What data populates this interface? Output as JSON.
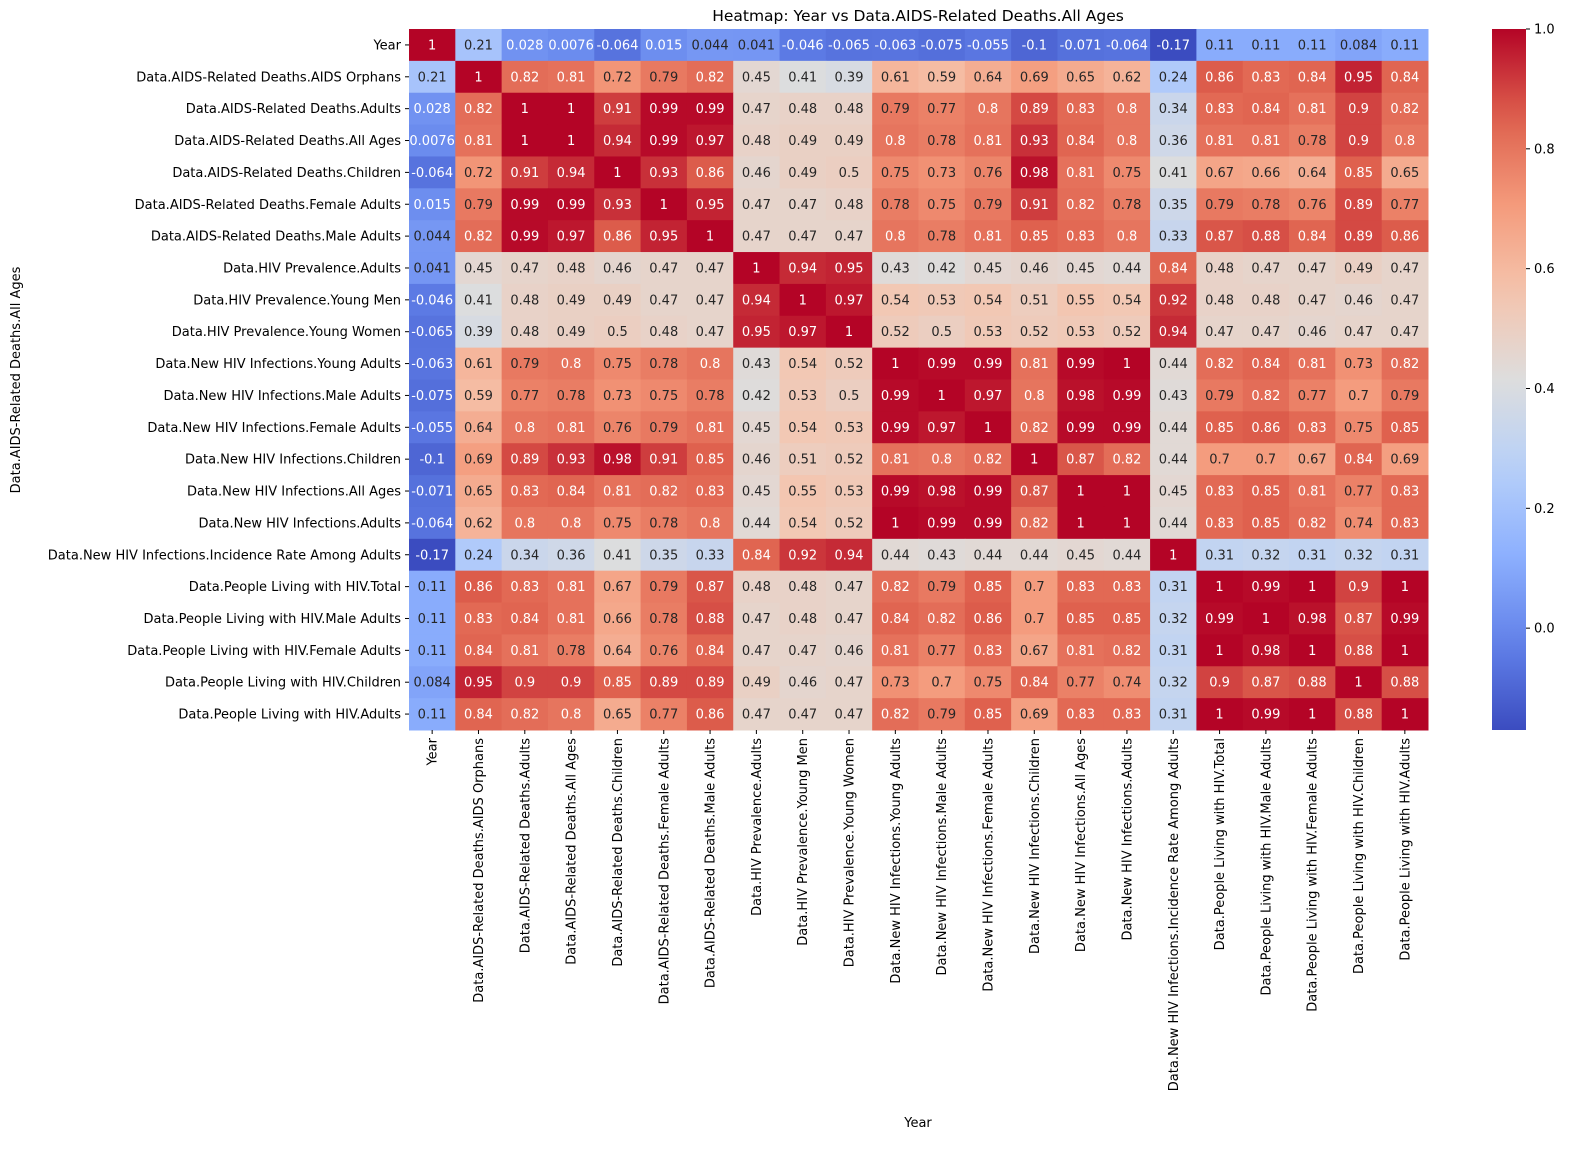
{
  "chart_data": {
    "type": "heatmap",
    "title": "Heatmap: Year vs Data.AIDS-Related Deaths.All Ages",
    "xlabel": "Year",
    "ylabel": "Data.AIDS-Related Deaths.All Ages",
    "colormap": "coolwarm",
    "vmin": -0.17,
    "vmax": 1.0,
    "colorbar": {
      "ticks": [
        0.0,
        0.2,
        0.4,
        0.6,
        0.8,
        1.0
      ],
      "tick_labels": [
        "0.0",
        "0.2",
        "0.4",
        "0.6",
        "0.8",
        "1.0"
      ],
      "placement": "right"
    },
    "labels": [
      "Year",
      "Data.AIDS-Related Deaths.AIDS Orphans",
      "Data.AIDS-Related Deaths.Adults",
      "Data.AIDS-Related Deaths.All Ages",
      "Data.AIDS-Related Deaths.Children",
      "Data.AIDS-Related Deaths.Female Adults",
      "Data.AIDS-Related Deaths.Male Adults",
      "Data.HIV Prevalence.Adults",
      "Data.HIV Prevalence.Young Men",
      "Data.HIV Prevalence.Young Women",
      "Data.New HIV Infections.Young Adults",
      "Data.New HIV Infections.Male Adults",
      "Data.New HIV Infections.Female Adults",
      "Data.New HIV Infections.Children",
      "Data.New HIV Infections.All Ages",
      "Data.New HIV Infections.Adults",
      "Data.New HIV Infections.Incidence Rate Among Adults",
      "Data.People Living with HIV.Total",
      "Data.People Living with HIV.Male Adults",
      "Data.People Living with HIV.Female Adults",
      "Data.People Living with HIV.Children",
      "Data.People Living with HIV.Adults"
    ],
    "cell_text": [
      [
        "1",
        "0.21",
        "0.028",
        "0.0076",
        "-0.064",
        "0.015",
        "0.044",
        "0.041",
        "-0.046",
        "-0.065",
        "-0.063",
        "-0.075",
        "-0.055",
        "-0.1",
        "-0.071",
        "-0.064",
        "-0.17",
        "0.11",
        "0.11",
        "0.11",
        "0.084",
        "0.11"
      ],
      [
        "0.21",
        "1",
        "0.82",
        "0.81",
        "0.72",
        "0.79",
        "0.82",
        "0.45",
        "0.41",
        "0.39",
        "0.61",
        "0.59",
        "0.64",
        "0.69",
        "0.65",
        "0.62",
        "0.24",
        "0.86",
        "0.83",
        "0.84",
        "0.95",
        "0.84"
      ],
      [
        "0.028",
        "0.82",
        "1",
        "1",
        "0.91",
        "0.99",
        "0.99",
        "0.47",
        "0.48",
        "0.48",
        "0.79",
        "0.77",
        "0.8",
        "0.89",
        "0.83",
        "0.8",
        "0.34",
        "0.83",
        "0.84",
        "0.81",
        "0.9",
        "0.82"
      ],
      [
        "0.0076",
        "0.81",
        "1",
        "1",
        "0.94",
        "0.99",
        "0.97",
        "0.48",
        "0.49",
        "0.49",
        "0.8",
        "0.78",
        "0.81",
        "0.93",
        "0.84",
        "0.8",
        "0.36",
        "0.81",
        "0.81",
        "0.78",
        "0.9",
        "0.8"
      ],
      [
        "-0.064",
        "0.72",
        "0.91",
        "0.94",
        "1",
        "0.93",
        "0.86",
        "0.46",
        "0.49",
        "0.5",
        "0.75",
        "0.73",
        "0.76",
        "0.98",
        "0.81",
        "0.75",
        "0.41",
        "0.67",
        "0.66",
        "0.64",
        "0.85",
        "0.65"
      ],
      [
        "0.015",
        "0.79",
        "0.99",
        "0.99",
        "0.93",
        "1",
        "0.95",
        "0.47",
        "0.47",
        "0.48",
        "0.78",
        "0.75",
        "0.79",
        "0.91",
        "0.82",
        "0.78",
        "0.35",
        "0.79",
        "0.78",
        "0.76",
        "0.89",
        "0.77"
      ],
      [
        "0.044",
        "0.82",
        "0.99",
        "0.97",
        "0.86",
        "0.95",
        "1",
        "0.47",
        "0.47",
        "0.47",
        "0.8",
        "0.78",
        "0.81",
        "0.85",
        "0.83",
        "0.8",
        "0.33",
        "0.87",
        "0.88",
        "0.84",
        "0.89",
        "0.86"
      ],
      [
        "0.041",
        "0.45",
        "0.47",
        "0.48",
        "0.46",
        "0.47",
        "0.47",
        "1",
        "0.94",
        "0.95",
        "0.43",
        "0.42",
        "0.45",
        "0.46",
        "0.45",
        "0.44",
        "0.84",
        "0.48",
        "0.47",
        "0.47",
        "0.49",
        "0.47"
      ],
      [
        "-0.046",
        "0.41",
        "0.48",
        "0.49",
        "0.49",
        "0.47",
        "0.47",
        "0.94",
        "1",
        "0.97",
        "0.54",
        "0.53",
        "0.54",
        "0.51",
        "0.55",
        "0.54",
        "0.92",
        "0.48",
        "0.48",
        "0.47",
        "0.46",
        "0.47"
      ],
      [
        "-0.065",
        "0.39",
        "0.48",
        "0.49",
        "0.5",
        "0.48",
        "0.47",
        "0.95",
        "0.97",
        "1",
        "0.52",
        "0.5",
        "0.53",
        "0.52",
        "0.53",
        "0.52",
        "0.94",
        "0.47",
        "0.47",
        "0.46",
        "0.47",
        "0.47"
      ],
      [
        "-0.063",
        "0.61",
        "0.79",
        "0.8",
        "0.75",
        "0.78",
        "0.8",
        "0.43",
        "0.54",
        "0.52",
        "1",
        "0.99",
        "0.99",
        "0.81",
        "0.99",
        "1",
        "0.44",
        "0.82",
        "0.84",
        "0.81",
        "0.73",
        "0.82"
      ],
      [
        "-0.075",
        "0.59",
        "0.77",
        "0.78",
        "0.73",
        "0.75",
        "0.78",
        "0.42",
        "0.53",
        "0.5",
        "0.99",
        "1",
        "0.97",
        "0.8",
        "0.98",
        "0.99",
        "0.43",
        "0.79",
        "0.82",
        "0.77",
        "0.7",
        "0.79"
      ],
      [
        "-0.055",
        "0.64",
        "0.8",
        "0.81",
        "0.76",
        "0.79",
        "0.81",
        "0.45",
        "0.54",
        "0.53",
        "0.99",
        "0.97",
        "1",
        "0.82",
        "0.99",
        "0.99",
        "0.44",
        "0.85",
        "0.86",
        "0.83",
        "0.75",
        "0.85"
      ],
      [
        "-0.1",
        "0.69",
        "0.89",
        "0.93",
        "0.98",
        "0.91",
        "0.85",
        "0.46",
        "0.51",
        "0.52",
        "0.81",
        "0.8",
        "0.82",
        "1",
        "0.87",
        "0.82",
        "0.44",
        "0.7",
        "0.7",
        "0.67",
        "0.84",
        "0.69"
      ],
      [
        "-0.071",
        "0.65",
        "0.83",
        "0.84",
        "0.81",
        "0.82",
        "0.83",
        "0.45",
        "0.55",
        "0.53",
        "0.99",
        "0.98",
        "0.99",
        "0.87",
        "1",
        "1",
        "0.45",
        "0.83",
        "0.85",
        "0.81",
        "0.77",
        "0.83"
      ],
      [
        "-0.064",
        "0.62",
        "0.8",
        "0.8",
        "0.75",
        "0.78",
        "0.8",
        "0.44",
        "0.54",
        "0.52",
        "1",
        "0.99",
        "0.99",
        "0.82",
        "1",
        "1",
        "0.44",
        "0.83",
        "0.85",
        "0.82",
        "0.74",
        "0.83"
      ],
      [
        "-0.17",
        "0.24",
        "0.34",
        "0.36",
        "0.41",
        "0.35",
        "0.33",
        "0.84",
        "0.92",
        "0.94",
        "0.44",
        "0.43",
        "0.44",
        "0.44",
        "0.45",
        "0.44",
        "1",
        "0.31",
        "0.32",
        "0.31",
        "0.32",
        "0.31"
      ],
      [
        "0.11",
        "0.86",
        "0.83",
        "0.81",
        "0.67",
        "0.79",
        "0.87",
        "0.48",
        "0.48",
        "0.47",
        "0.82",
        "0.79",
        "0.85",
        "0.7",
        "0.83",
        "0.83",
        "0.31",
        "1",
        "0.99",
        "1",
        "0.9",
        "1"
      ],
      [
        "0.11",
        "0.83",
        "0.84",
        "0.81",
        "0.66",
        "0.78",
        "0.88",
        "0.47",
        "0.48",
        "0.47",
        "0.84",
        "0.82",
        "0.86",
        "0.7",
        "0.85",
        "0.85",
        "0.32",
        "0.99",
        "1",
        "0.98",
        "0.87",
        "0.99"
      ],
      [
        "0.11",
        "0.84",
        "0.81",
        "0.78",
        "0.64",
        "0.76",
        "0.84",
        "0.47",
        "0.47",
        "0.46",
        "0.81",
        "0.77",
        "0.83",
        "0.67",
        "0.81",
        "0.82",
        "0.31",
        "1",
        "0.98",
        "1",
        "0.88",
        "1"
      ],
      [
        "0.084",
        "0.95",
        "0.9",
        "0.9",
        "0.85",
        "0.89",
        "0.89",
        "0.49",
        "0.46",
        "0.47",
        "0.73",
        "0.7",
        "0.75",
        "0.84",
        "0.77",
        "0.74",
        "0.32",
        "0.9",
        "0.87",
        "0.88",
        "1",
        "0.88"
      ],
      [
        "0.11",
        "0.84",
        "0.82",
        "0.8",
        "0.65",
        "0.77",
        "0.86",
        "0.47",
        "0.47",
        "0.47",
        "0.82",
        "0.79",
        "0.85",
        "0.69",
        "0.83",
        "0.83",
        "0.31",
        "1",
        "0.99",
        "1",
        "0.88",
        "1"
      ]
    ]
  }
}
